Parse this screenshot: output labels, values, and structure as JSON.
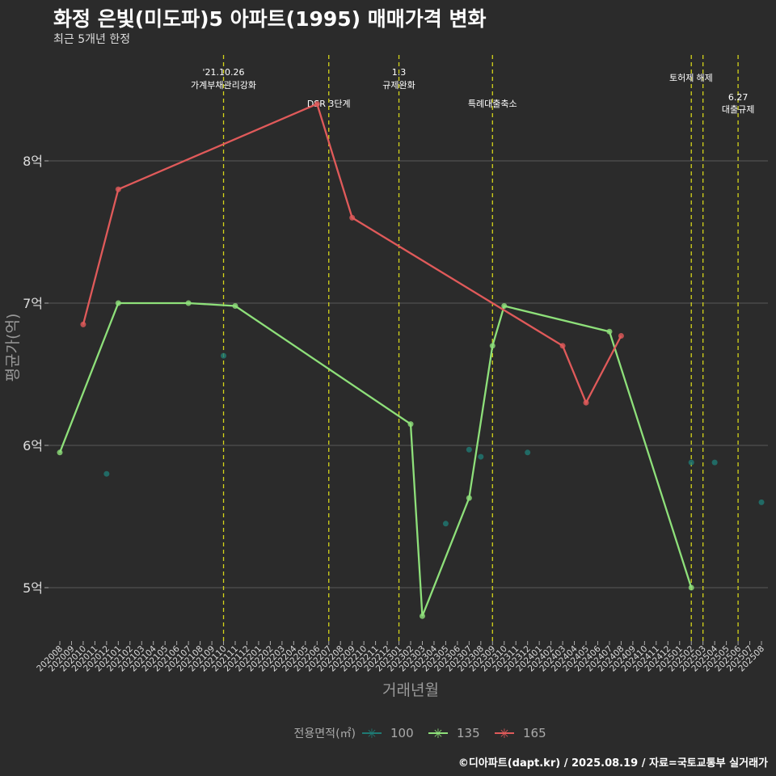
{
  "title": "화정 은빛(미도파)5 아파트(1995) 매매가격 변화",
  "subtitle": "최근 5개년 한정",
  "credit": "©디아파트(dapt.kr) / 2025.08.19 / 자료=국토교통부 실거래가",
  "chart_data": {
    "type": "line",
    "xlabel": "거래년월",
    "ylabel": "평균가(억)",
    "yticks": [
      {
        "v": 5,
        "label": "5억"
      },
      {
        "v": 6,
        "label": "6억"
      },
      {
        "v": 7,
        "label": "7억"
      },
      {
        "v": 8,
        "label": "8억"
      }
    ],
    "ylim": [
      4.65,
      8.8
    ],
    "start_month": "202008",
    "n_months": 61,
    "legend": {
      "title": "전용면적(㎡)",
      "position": "bottom"
    },
    "series": [
      {
        "name": "100",
        "color": "#1f7a74",
        "line": false,
        "points": [
          [
            "202012",
            5.8
          ],
          [
            "202110",
            6.63
          ],
          [
            "202305",
            5.45
          ],
          [
            "202307",
            5.97
          ],
          [
            "202308",
            5.92
          ],
          [
            "202312",
            5.95
          ],
          [
            "202502",
            5.88
          ],
          [
            "202504",
            5.88
          ],
          [
            "202508",
            5.6
          ]
        ]
      },
      {
        "name": "135",
        "color": "#8ee07a",
        "line": true,
        "points": [
          [
            "202008",
            5.95
          ],
          [
            "202101",
            7.0
          ],
          [
            "202107",
            7.0
          ],
          [
            "202111",
            6.98
          ],
          [
            "202302",
            6.15
          ],
          [
            "202303",
            4.8
          ],
          [
            "202307",
            5.63
          ],
          [
            "202309",
            6.7
          ],
          [
            "202310",
            6.98
          ],
          [
            "202407",
            6.8
          ],
          [
            "202502",
            5.0
          ]
        ]
      },
      {
        "name": "165",
        "color": "#e05a5a",
        "line": true,
        "points": [
          [
            "202010",
            6.85
          ],
          [
            "202101",
            7.8
          ],
          [
            "202206",
            8.4
          ],
          [
            "202209",
            7.6
          ],
          [
            "202403",
            6.7
          ],
          [
            "202405",
            6.3
          ],
          [
            "202408",
            6.77
          ]
        ]
      }
    ],
    "events": [
      {
        "month": "202110",
        "lines": [
          "'21.10.26",
          "가계부채관리강화"
        ],
        "row": 0
      },
      {
        "month": "202207",
        "lines": [
          "DSR 3단계"
        ],
        "row": 2
      },
      {
        "month": "202301",
        "lines": [
          "1.3",
          "규제완화"
        ],
        "row": 0
      },
      {
        "month": "202309",
        "lines": [
          "특례대출축소"
        ],
        "row": 2
      },
      {
        "month": "202502",
        "lines": [
          "토허제"
        ],
        "row": 1
      },
      {
        "month": "202503",
        "lines": [
          "해제"
        ],
        "row": 1
      },
      {
        "month": "202506",
        "lines": [
          "6.27",
          "대출규제"
        ],
        "row": 3
      }
    ]
  }
}
